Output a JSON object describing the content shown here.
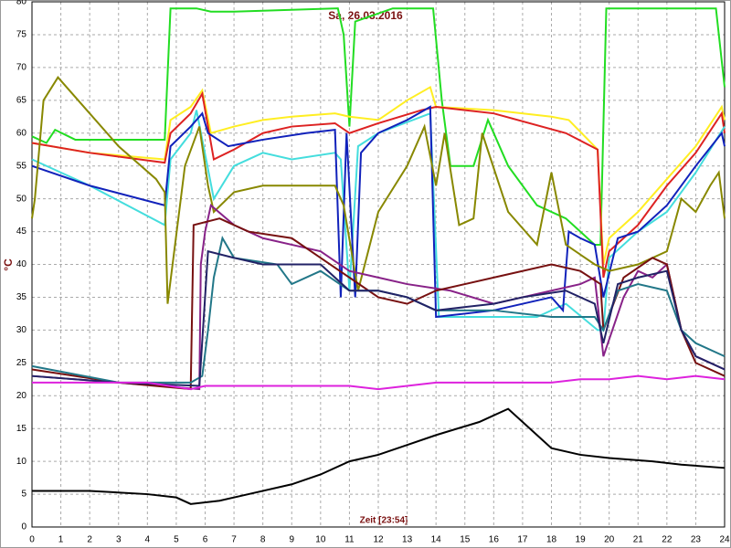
{
  "chart_data": {
    "type": "line",
    "title": "Sa, 26.03.2016",
    "x_label": "Zeit [23:54]",
    "y_label": "°C",
    "xlim": [
      0,
      24
    ],
    "xticks": [
      0,
      1,
      2,
      3,
      4,
      5,
      6,
      7,
      8,
      9,
      10,
      11,
      12,
      13,
      14,
      15,
      16,
      17,
      18,
      19,
      20,
      21,
      22,
      23,
      24
    ],
    "ylim": [
      0,
      80
    ],
    "yticks": [
      0,
      5,
      10,
      15,
      20,
      25,
      30,
      35,
      40,
      45,
      50,
      55,
      60,
      65,
      70,
      75,
      80
    ],
    "grid": true,
    "series": [
      {
        "color": "#22dd22",
        "x": [
          0,
          0.5,
          0.8,
          1.5,
          4.6,
          4.8,
          5.7,
          6.2,
          7,
          10.6,
          10.8,
          11,
          11.2,
          12.5,
          13.9,
          14.2,
          14.5,
          15.3,
          15.8,
          16.5,
          17.5,
          18.5,
          19.5,
          19.7,
          19.9,
          23.7,
          24
        ],
        "values": [
          59.5,
          58.5,
          60.5,
          59,
          59,
          79,
          79,
          78.5,
          78.5,
          79,
          75,
          61,
          77,
          79,
          79,
          65,
          55,
          55,
          62,
          55,
          49,
          47,
          43,
          43,
          79,
          79,
          67
        ]
      },
      {
        "color": "#ffee22",
        "x": [
          0,
          2,
          4.6,
          4.8,
          5.5,
          5.9,
          6.2,
          7,
          8,
          9,
          10.5,
          11,
          12,
          13,
          13.8,
          14,
          16,
          18,
          18.6,
          19.6,
          19.8,
          20,
          21,
          22,
          23,
          23.9,
          24
        ],
        "values": [
          58.5,
          57,
          56,
          62,
          64,
          66.5,
          60,
          61,
          62,
          62.5,
          63,
          62.5,
          62,
          65,
          67,
          64,
          63.5,
          62.5,
          62,
          57.5,
          40,
          44,
          48,
          53,
          58,
          64,
          62
        ]
      },
      {
        "color": "#dd2222",
        "x": [
          0,
          2,
          4.6,
          4.8,
          5.5,
          5.9,
          6.3,
          7,
          8,
          9,
          10.5,
          11,
          12,
          13.5,
          14,
          16,
          18.5,
          19.6,
          19.8,
          20,
          21,
          22,
          23,
          23.9,
          24
        ],
        "values": [
          58.5,
          57,
          55.5,
          60,
          63,
          66,
          56,
          57.5,
          60,
          61,
          61.5,
          60,
          61.5,
          63.5,
          64,
          63,
          60,
          57.5,
          38,
          42,
          46,
          52,
          57,
          63,
          60
        ]
      },
      {
        "color": "#44dddd",
        "x": [
          0,
          2,
          4.6,
          4.8,
          5.5,
          5.7,
          6.3,
          7,
          8,
          9,
          10.5,
          10.7,
          11,
          11.3,
          12,
          13.8,
          14.1,
          16,
          17.5,
          18.5,
          19.6,
          19.8,
          20,
          21,
          22,
          23,
          24
        ],
        "values": [
          56,
          52,
          46,
          56,
          60,
          63.5,
          50,
          55,
          57,
          56,
          57,
          56,
          36,
          58,
          60,
          63,
          32,
          32,
          32,
          34,
          30,
          30,
          41,
          45,
          48,
          54,
          61
        ]
      },
      {
        "color": "#1122bb",
        "x": [
          0,
          2,
          4.6,
          4.8,
          5.5,
          5.9,
          6.1,
          6.8,
          8,
          9.5,
          10.5,
          10.7,
          10.9,
          11.2,
          11.4,
          12,
          13,
          13.8,
          14,
          16,
          18,
          18.4,
          18.6,
          19,
          19.5,
          19.8,
          20.3,
          21,
          22,
          23,
          23.9,
          24
        ],
        "values": [
          55,
          52,
          49,
          58,
          61,
          63,
          60,
          58,
          59,
          60,
          60.5,
          35,
          60,
          35,
          57,
          60,
          62,
          64,
          32,
          33,
          35,
          33,
          45,
          44,
          43,
          35,
          44,
          45,
          49,
          55,
          60,
          58
        ]
      },
      {
        "color": "#888800",
        "x": [
          0,
          0.1,
          0.4,
          0.9,
          2,
          3,
          4.3,
          4.6,
          4.7,
          5.3,
          5.8,
          6.1,
          6.3,
          7,
          8,
          10.5,
          10.8,
          11.3,
          12,
          13,
          13.6,
          14,
          14.3,
          14.8,
          15.3,
          15.6,
          16.5,
          17.5,
          18,
          18.5,
          19.5,
          20,
          21,
          22,
          22.5,
          23,
          23.5,
          23.8,
          24
        ],
        "values": [
          47,
          50,
          65,
          68.5,
          63,
          58,
          53,
          51,
          34,
          55,
          61,
          52,
          48,
          51,
          52,
          52,
          49,
          36,
          48,
          55,
          61,
          52,
          60,
          46,
          47,
          60,
          48,
          43,
          54,
          43,
          40,
          39,
          40,
          42,
          50,
          48,
          52,
          54,
          47
        ]
      },
      {
        "color": "#882288",
        "x": [
          0,
          3,
          5.8,
          5.85,
          6,
          6.2,
          7,
          8,
          9,
          10,
          11,
          12,
          13,
          14.5,
          16,
          17,
          18,
          19,
          19.5,
          19.8,
          20.5,
          21,
          21.5,
          22,
          22.5,
          23,
          24
        ],
        "values": [
          23,
          22,
          21,
          40,
          45,
          49,
          46,
          44,
          43,
          42,
          39,
          38,
          37,
          36,
          34,
          35,
          36,
          37,
          38,
          26,
          35,
          39,
          38,
          40,
          30,
          26,
          24
        ]
      },
      {
        "color": "#771111",
        "x": [
          0,
          3,
          5.5,
          5.6,
          6.5,
          7.5,
          9,
          10,
          11,
          12,
          13,
          14,
          16,
          18,
          19,
          19.7,
          19.8,
          20.5,
          21.5,
          22,
          22.5,
          23,
          24
        ],
        "values": [
          24,
          22,
          21,
          46,
          47,
          45,
          44,
          41,
          38,
          35,
          34,
          36,
          38,
          40,
          39,
          37,
          30,
          38,
          41,
          40,
          30,
          25,
          23
        ]
      },
      {
        "color": "#227788",
        "x": [
          0,
          3,
          5.5,
          5.9,
          6.1,
          6.3,
          6.6,
          7,
          8.5,
          9,
          10,
          11,
          12,
          13,
          14,
          16,
          18,
          19.5,
          19.8,
          20.3,
          21,
          22,
          22.5,
          23,
          24
        ],
        "values": [
          24.5,
          22,
          22,
          23,
          30,
          38,
          44,
          41,
          40,
          37,
          39,
          36,
          36,
          35,
          33,
          33,
          32,
          32,
          30,
          36,
          37,
          36,
          30,
          28,
          26
        ]
      },
      {
        "color": "#222266",
        "x": [
          0,
          3,
          5.8,
          6.1,
          7,
          8,
          10,
          11,
          12,
          13,
          14,
          16,
          17,
          18.5,
          19.5,
          19.8,
          20.3,
          21,
          22,
          22.5,
          23,
          24
        ],
        "values": [
          23,
          22,
          21.5,
          42,
          41,
          40,
          40,
          36,
          36,
          35,
          33,
          34,
          35,
          36,
          34,
          28,
          37,
          38,
          39,
          30,
          26,
          24
        ]
      },
      {
        "color": "#dd22dd",
        "x": [
          0,
          4,
          5.5,
          6,
          9,
          11,
          12,
          13,
          14,
          18,
          19,
          20,
          21,
          22,
          23,
          24
        ],
        "values": [
          22,
          22,
          21,
          21.5,
          21.5,
          21.5,
          21,
          21.5,
          22,
          22,
          22.5,
          22.5,
          23,
          22.5,
          23,
          22.5
        ]
      },
      {
        "color": "#000000",
        "x": [
          0,
          2,
          4,
          5,
          5.5,
          6.5,
          7.5,
          9,
          10,
          11,
          12,
          13,
          14,
          15.5,
          16,
          16.5,
          17,
          17.5,
          18,
          19,
          20,
          21.5,
          22.5,
          24
        ],
        "values": [
          5.5,
          5.5,
          5,
          4.5,
          3.5,
          4,
          5,
          6.5,
          8,
          10,
          11,
          12.5,
          14,
          16,
          17,
          18,
          16,
          14,
          12,
          11,
          10.5,
          10,
          9.5,
          9
        ]
      }
    ]
  }
}
